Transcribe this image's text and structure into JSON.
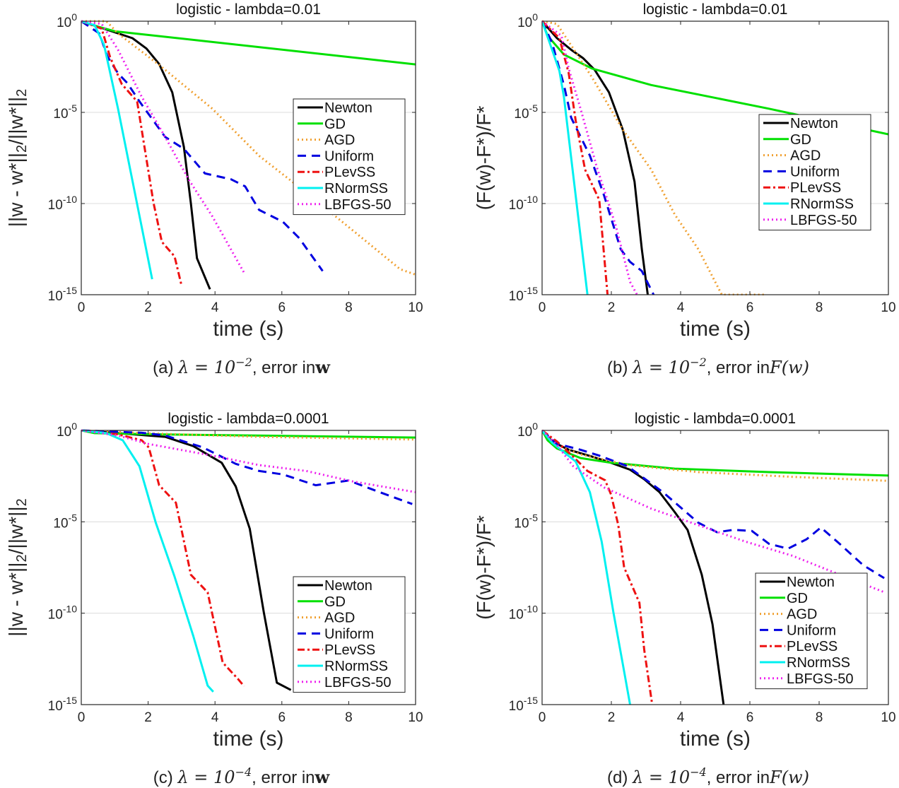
{
  "styles": {
    "Newton": {
      "color": "#000000",
      "dash": "solid"
    },
    "GD": {
      "color": "#00e000",
      "dash": "solid"
    },
    "AGD": {
      "color": "#f0a030",
      "dash": "dotted"
    },
    "Uniform": {
      "color": "#0000e0",
      "dash": "dashed"
    },
    "PLevSS": {
      "color": "#ee1111",
      "dash": "dashdot"
    },
    "RNormSS": {
      "color": "#00f0f0",
      "dash": "solid"
    },
    "LBFGS-50": {
      "color": "#ee22ee",
      "dash": "dotted"
    }
  },
  "chart_data": [
    {
      "type": "line",
      "title": "logistic - lambda=0.01",
      "xlabel": "time (s)",
      "ylabel_parts": [
        {
          "t": "||w - w*||"
        },
        {
          "sub": "2"
        },
        {
          "t": "/||w*||"
        },
        {
          "sub": "2"
        }
      ],
      "caption": {
        "label": "(a)",
        "lambda": "λ = 10",
        "exp": "−2",
        "mid": ", error in",
        "target": "w"
      },
      "xlim": [
        0,
        10
      ],
      "ylim_log10": [
        -15,
        0
      ],
      "yscale": "log",
      "xticks": [
        0,
        2,
        4,
        6,
        8,
        10
      ],
      "yticks": [
        {
          "exp": 0,
          "label": "10",
          "sup": "0"
        },
        {
          "exp": -5,
          "label": "10",
          "sup": "-5"
        },
        {
          "exp": -10,
          "label": "10",
          "sup": "-10"
        },
        {
          "exp": -15,
          "label": "10",
          "sup": "-15"
        }
      ],
      "grid": "horizontal-major",
      "legend_position": "right-middle",
      "series": [
        {
          "name": "Newton",
          "x": [
            0,
            1.53,
            1.95,
            2.33,
            2.72,
            3.07,
            3.28,
            3.46,
            3.85
          ],
          "log10y": [
            0,
            -0.93,
            -1.5,
            -2.35,
            -3.9,
            -6.9,
            -10,
            -13,
            -14.7
          ]
        },
        {
          "name": "GD",
          "x": [
            0,
            0.5,
            1,
            10
          ],
          "log10y": [
            0,
            -0.3,
            -0.55,
            -2.37
          ]
        },
        {
          "name": "AGD",
          "x": [
            0,
            0.75,
            1.1,
            2.33,
            3.92,
            5.33,
            6.73,
            8.14,
            9.54,
            10
          ],
          "log10y": [
            0,
            0,
            -0.67,
            -2.4,
            -4.8,
            -7.4,
            -9.4,
            -11.5,
            -13.6,
            -13.9
          ]
        },
        {
          "name": "Uniform",
          "x": [
            0,
            0.54,
            0.79,
            1.1,
            1.38,
            1.74,
            2.51,
            3.07,
            3.7,
            4.48,
            4.9,
            5.32,
            6.03,
            6.52,
            7.22
          ],
          "log10y": [
            0,
            -0.67,
            -1.96,
            -2.86,
            -3.4,
            -4.4,
            -6.35,
            -7,
            -8.35,
            -8.67,
            -9.06,
            -10.35,
            -11,
            -11.9,
            -13.7
          ]
        },
        {
          "name": "PLevSS",
          "x": [
            0,
            0.61,
            0.86,
            1.21,
            1.67,
            2.16,
            2.41,
            2.79,
            3.0
          ],
          "log10y": [
            0,
            -0.41,
            -1.96,
            -3.44,
            -4.4,
            -9.96,
            -12.1,
            -12.9,
            -14.5
          ]
        },
        {
          "name": "RNormSS",
          "x": [
            0,
            0.4,
            0.68,
            1.1,
            2.12
          ],
          "log10y": [
            0,
            -0.22,
            -1.3,
            -4.8,
            -14.15
          ]
        },
        {
          "name": "LBFGS-50",
          "x": [
            0,
            0.61,
            1.1,
            1.81,
            2.51,
            3.21,
            3.92,
            4.87
          ],
          "log10y": [
            0,
            -0.15,
            -1.57,
            -4.15,
            -6.35,
            -8.67,
            -10.7,
            -13.8
          ]
        }
      ]
    },
    {
      "type": "line",
      "title": "logistic - lambda=0.01",
      "xlabel": "time (s)",
      "ylabel_parts": [
        {
          "t": "(F(w)-F*)/F*"
        }
      ],
      "caption": {
        "label": "(b)",
        "lambda": "λ = 10",
        "exp": "−2",
        "mid": ", error in",
        "target": "F(w)"
      },
      "xlim": [
        0,
        10
      ],
      "ylim_log10": [
        -15,
        0
      ],
      "yscale": "log",
      "xticks": [
        0,
        2,
        4,
        6,
        8,
        10
      ],
      "yticks": [
        {
          "exp": 0,
          "label": "10",
          "sup": "0"
        },
        {
          "exp": -5,
          "label": "10",
          "sup": "-5"
        },
        {
          "exp": -10,
          "label": "10",
          "sup": "-10"
        },
        {
          "exp": -15,
          "label": "10",
          "sup": "-15"
        }
      ],
      "grid": "horizontal-major",
      "legend_position": "right-middle",
      "series": [
        {
          "name": "Newton",
          "x": [
            0,
            0.43,
            0.84,
            1.18,
            1.52,
            1.93,
            2.33,
            2.67,
            2.88,
            3.05
          ],
          "log10y": [
            0,
            -0.93,
            -1.57,
            -2.02,
            -2.67,
            -3.9,
            -5.95,
            -8.8,
            -12.5,
            -15
          ]
        },
        {
          "name": "GD",
          "x": [
            0,
            0.16,
            0.63,
            1.45,
            3.15,
            6.55,
            10
          ],
          "log10y": [
            0,
            -0.8,
            -1.83,
            -2.6,
            -3.5,
            -4.8,
            -6.2
          ]
        },
        {
          "name": "AGD",
          "x": [
            0,
            0.43,
            0.97,
            1.45,
            2.33,
            3.15,
            3.83,
            4.51,
            5.19,
            6.45
          ],
          "log10y": [
            0,
            -0.15,
            -1.7,
            -3.1,
            -5.95,
            -8.14,
            -10.6,
            -12.5,
            -15,
            -15
          ]
        },
        {
          "name": "Uniform",
          "x": [
            0,
            0.29,
            0.63,
            0.84,
            1.38,
            1.79,
            2.27,
            2.54,
            2.88,
            3.22
          ],
          "log10y": [
            0,
            -1.19,
            -3.5,
            -5.3,
            -7.37,
            -9.56,
            -12.5,
            -13.2,
            -13.7,
            -15
          ]
        },
        {
          "name": "PLevSS",
          "x": [
            0,
            0.5,
            0.77,
            0.97,
            1.24,
            1.65,
            1.89
          ],
          "log10y": [
            0,
            -0.93,
            -2.86,
            -5.44,
            -8.14,
            -9.8,
            -15
          ]
        },
        {
          "name": "RNormSS",
          "x": [
            0,
            0.29,
            0.5,
            0.63,
            1.31
          ],
          "log10y": [
            0,
            -1.57,
            -2.73,
            -4.15,
            -15
          ]
        },
        {
          "name": "LBFGS-50",
          "x": [
            0,
            0.56,
            0.77,
            1.11,
            1.58,
            2.13,
            2.54,
            2.74
          ],
          "log10y": [
            0,
            -0.8,
            -2.6,
            -4.8,
            -8.0,
            -11.24,
            -14.3,
            -15
          ]
        }
      ]
    },
    {
      "type": "line",
      "title": "logistic - lambda=0.0001",
      "xlabel": "time (s)",
      "ylabel_parts": [
        {
          "t": "||w - w*||"
        },
        {
          "sub": "2"
        },
        {
          "t": "/||w*||"
        },
        {
          "sub": "2"
        }
      ],
      "caption": {
        "label": "(c)",
        "lambda": "λ = 10",
        "exp": "−4",
        "mid": ", error in",
        "target": "w"
      },
      "xlim": [
        0,
        10
      ],
      "ylim_log10": [
        -15,
        0
      ],
      "yscale": "log",
      "xticks": [
        0,
        2,
        4,
        6,
        8,
        10
      ],
      "yticks": [
        {
          "exp": 0,
          "label": "10",
          "sup": "0"
        },
        {
          "exp": -5,
          "label": "10",
          "sup": "-5"
        },
        {
          "exp": -10,
          "label": "10",
          "sup": "-10"
        },
        {
          "exp": -15,
          "label": "10",
          "sup": "-15"
        }
      ],
      "grid": "horizontal-major",
      "legend_position": "bottom-right",
      "series": [
        {
          "name": "Newton",
          "x": [
            0,
            1.1,
            2.51,
            3.35,
            4.2,
            4.62,
            5.04,
            5.46,
            5.85,
            6.27
          ],
          "log10y": [
            0,
            -0.15,
            -0.35,
            -0.86,
            -1.77,
            -3.06,
            -5.38,
            -9.96,
            -13.8,
            -14.2
          ]
        },
        {
          "name": "GD",
          "x": [
            0,
            0.4,
            2.51,
            10
          ],
          "log10y": [
            0,
            -0.15,
            -0.22,
            -0.39
          ]
        },
        {
          "name": "AGD",
          "x": [
            0,
            1.81,
            5.32,
            10
          ],
          "log10y": [
            0,
            -0.15,
            -0.35,
            -0.5
          ]
        },
        {
          "name": "Uniform",
          "x": [
            0,
            1.81,
            2.51,
            3.64,
            4.62,
            5.32,
            6.03,
            7.01,
            8.0,
            8.84,
            9.9
          ],
          "log10y": [
            0,
            -0.13,
            -0.28,
            -0.93,
            -1.83,
            -2.22,
            -2.41,
            -3.0,
            -2.74,
            -3.32,
            -4.03
          ]
        },
        {
          "name": "PLevSS",
          "x": [
            0,
            1.1,
            1.81,
            2.02,
            2.33,
            2.83,
            3.28,
            3.78,
            4.23,
            4.69,
            4.87
          ],
          "log10y": [
            0,
            -0.22,
            -0.54,
            -0.93,
            -3.0,
            -3.96,
            -7.9,
            -8.86,
            -12.7,
            -13.6,
            -14.0
          ]
        },
        {
          "name": "RNormSS",
          "x": [
            0,
            0.75,
            1.24,
            1.74,
            2.23,
            2.79,
            3.35,
            3.78,
            3.95
          ],
          "log10y": [
            0,
            -0.15,
            -0.54,
            -1.96,
            -5.06,
            -8.0,
            -11.25,
            -13.96,
            -14.3
          ]
        },
        {
          "name": "LBFGS-50",
          "x": [
            0,
            1.1,
            2.0,
            3.92,
            5.32,
            6.73,
            8.14,
            10
          ],
          "log10y": [
            0,
            -0.28,
            -0.74,
            -1.38,
            -1.9,
            -2.22,
            -2.8,
            -3.38
          ]
        }
      ]
    },
    {
      "type": "line",
      "title": "logistic - lambda=0.0001",
      "xlabel": "time (s)",
      "ylabel_parts": [
        {
          "t": "(F(w)-F*)/F*"
        }
      ],
      "caption": {
        "label": "(d)",
        "lambda": "λ = 10",
        "exp": "−4",
        "mid": ", error in",
        "target": "F(w)"
      },
      "xlim": [
        0,
        10
      ],
      "ylim_log10": [
        -15,
        0
      ],
      "yscale": "log",
      "xticks": [
        0,
        2,
        4,
        6,
        8,
        10
      ],
      "yticks": [
        {
          "exp": 0,
          "label": "10",
          "sup": "0"
        },
        {
          "exp": -5,
          "label": "10",
          "sup": "-5"
        },
        {
          "exp": -10,
          "label": "10",
          "sup": "-10"
        },
        {
          "exp": -15,
          "label": "10",
          "sup": "-15"
        }
      ],
      "grid": "horizontal-major",
      "legend_position": "bottom-right",
      "series": [
        {
          "name": "Newton",
          "x": [
            0,
            0.29,
            0.77,
            1.45,
            1.99,
            2.54,
            2.95,
            3.39,
            3.83,
            4.2,
            4.61,
            4.92,
            5.24
          ],
          "log10y": [
            0,
            -0.61,
            -1.06,
            -1.44,
            -1.77,
            -2.15,
            -2.67,
            -3.38,
            -4.47,
            -5.44,
            -7.89,
            -10.6,
            -15
          ]
        },
        {
          "name": "GD",
          "x": [
            0,
            0.16,
            0.43,
            1.11,
            1.99,
            3.83,
            6.55,
            10
          ],
          "log10y": [
            0,
            -0.54,
            -0.99,
            -1.51,
            -1.77,
            -2.09,
            -2.28,
            -2.47
          ]
        },
        {
          "name": "AGD",
          "x": [
            0,
            0.43,
            1.11,
            2.47,
            4.51,
            7.23,
            10
          ],
          "log10y": [
            0,
            -0.8,
            -1.31,
            -1.89,
            -2.28,
            -2.54,
            -2.76
          ]
        },
        {
          "name": "Uniform",
          "x": [
            0,
            0.43,
            1.11,
            1.65,
            2.47,
            3.49,
            4.51,
            5.05,
            5.52,
            6.06,
            6.55,
            7.1,
            7.64,
            8.05,
            8.59,
            9.27,
            9.88
          ],
          "log10y": [
            0,
            -0.73,
            -1.06,
            -1.38,
            -1.96,
            -3.38,
            -5.05,
            -5.57,
            -5.44,
            -5.5,
            -6.2,
            -6.47,
            -5.95,
            -5.31,
            -6.2,
            -7.37,
            -8.08
          ]
        },
        {
          "name": "PLevSS",
          "x": [
            0,
            0.43,
            0.9,
            1.31,
            1.82,
            1.99,
            2.2,
            2.37,
            2.81,
            2.95,
            3.18
          ],
          "log10y": [
            0,
            -0.61,
            -1.44,
            -2.22,
            -2.73,
            -3.5,
            -5.18,
            -7.5,
            -9.43,
            -12.0,
            -15
          ]
        },
        {
          "name": "RNormSS",
          "x": [
            0,
            0.29,
            0.63,
            0.97,
            1.38,
            1.72,
            2.06,
            2.33,
            2.54
          ],
          "log10y": [
            0,
            -0.67,
            -1.19,
            -1.7,
            -3.38,
            -6.08,
            -9.95,
            -12.78,
            -15
          ]
        },
        {
          "name": "LBFGS-50",
          "x": [
            0,
            0.43,
            0.9,
            1.79,
            3.15,
            4.51,
            5.87,
            7.23,
            8.59,
            9.88
          ],
          "log10y": [
            0,
            -0.8,
            -1.96,
            -3.12,
            -4.28,
            -5.18,
            -6.08,
            -6.86,
            -7.89,
            -8.85
          ]
        }
      ]
    }
  ]
}
